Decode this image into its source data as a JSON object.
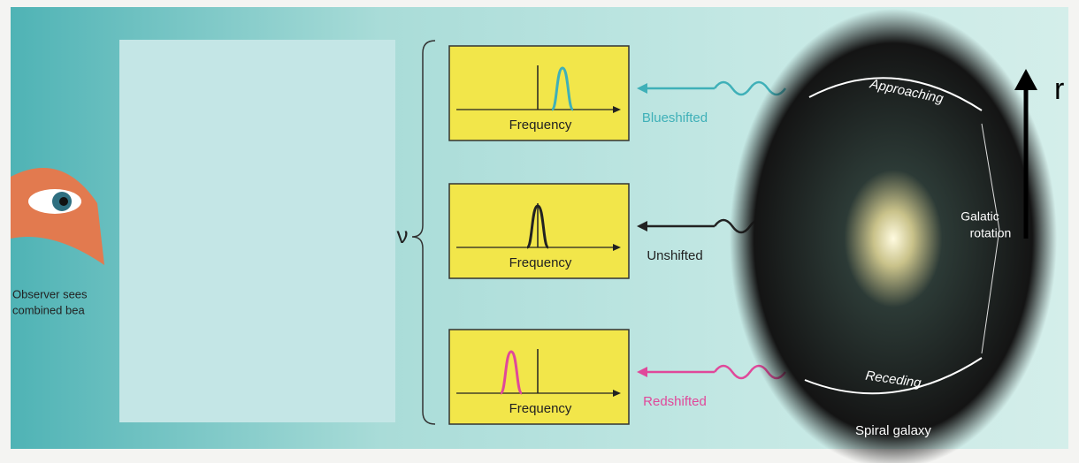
{
  "observer": {
    "lines": [
      "Observer sees",
      "combined bea"
    ]
  },
  "nu_label": "ν",
  "panels": [
    {
      "axis_label": "Frequency",
      "wave_label": "Blueshifted"
    },
    {
      "axis_label": "Frequency",
      "wave_label": "Unshifted"
    },
    {
      "axis_label": "Frequency",
      "wave_label": "Redshifted"
    }
  ],
  "galaxy": {
    "approaching": "Approaching",
    "receding": "Receding",
    "rotation_lines": [
      "Galatic",
      "rotation"
    ],
    "caption": "Spiral galaxy"
  },
  "r_label": "r"
}
